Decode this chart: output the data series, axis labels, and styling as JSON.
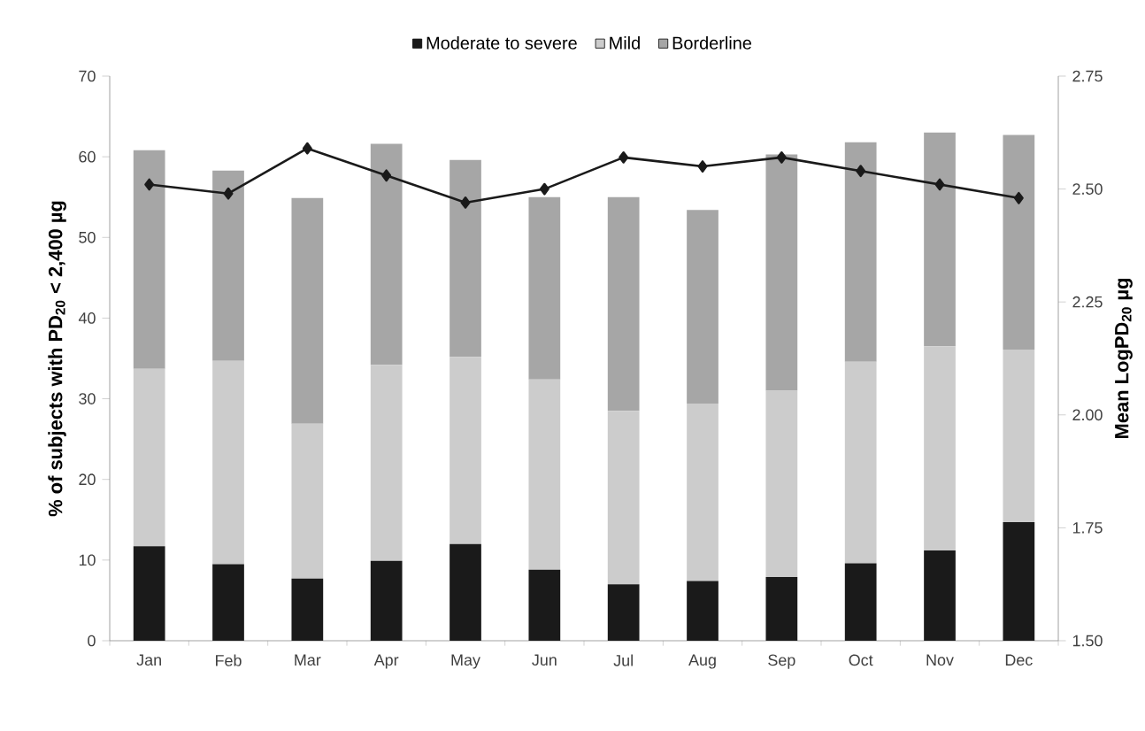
{
  "chart_data": {
    "type": "bar",
    "stacked": true,
    "ylabel": "% of subjects with PD$_{20}$ < 2,400 µg",
    "y2label": "Mean LogPD$_{20}$ µg",
    "categories": [
      "Jan",
      "Feb",
      "Mar",
      "Apr",
      "May",
      "Jun",
      "Jul",
      "Aug",
      "Sep",
      "Oct",
      "Nov",
      "Dec"
    ],
    "series": [
      {
        "name": "Moderate to severe",
        "color": "#1a1a1a",
        "values": [
          11.7,
          9.5,
          7.7,
          9.9,
          12.0,
          8.8,
          7.0,
          7.4,
          7.9,
          9.6,
          11.2,
          14.7
        ]
      },
      {
        "name": "Mild",
        "color": "#cccccc",
        "values": [
          22.0,
          25.2,
          19.2,
          24.3,
          23.2,
          23.6,
          21.5,
          22.0,
          23.1,
          25.0,
          25.3,
          21.4
        ]
      },
      {
        "name": "Borderline",
        "color": "#a6a6a6",
        "values": [
          27.1,
          23.6,
          28.0,
          27.4,
          24.4,
          22.6,
          26.5,
          24.0,
          29.3,
          27.2,
          26.5,
          26.6
        ]
      },
      {
        "type": "line",
        "axis": "y2",
        "color": "#1a1a1a",
        "marker": "diamond",
        "values": [
          2.51,
          2.49,
          2.59,
          2.53,
          2.47,
          2.5,
          2.57,
          2.55,
          2.57,
          2.54,
          2.51,
          2.48
        ]
      }
    ],
    "ylim": [
      0,
      70
    ],
    "yticks": [
      0,
      10,
      20,
      30,
      40,
      50,
      60,
      70
    ],
    "y2lim": [
      1.5,
      2.75
    ],
    "y2ticks": [
      {
        "value": 1.5,
        "label": "1.50"
      },
      {
        "value": 1.75,
        "label": "1.75"
      },
      {
        "value": 2.0,
        "label": "2.00"
      },
      {
        "value": 2.25,
        "label": "2.25"
      },
      {
        "value": 2.5,
        "label": "2.50"
      },
      {
        "value": 2.75,
        "label": "2.75"
      }
    ],
    "legend": "top",
    "grid": false
  }
}
